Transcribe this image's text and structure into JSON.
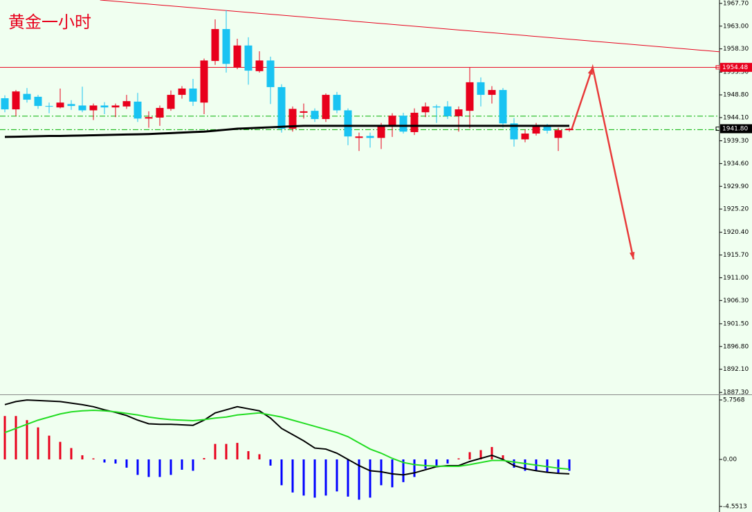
{
  "chart_data": [
    {
      "type": "candlestick",
      "title": "黄金一小时",
      "open": [
        1948.1,
        1945.8,
        1949.0,
        1948.4,
        1946.5,
        1946.2,
        1946.9,
        1946.6,
        1945.6,
        1946.6,
        1946.2,
        1946.4,
        1947.4,
        1943.9,
        1944.1,
        1945.9,
        1948.8,
        1950.1,
        1947.2,
        1955.8,
        1962.4,
        1954.5,
        1959.0,
        1953.7,
        1955.9,
        1950.4,
        1941.8,
        1945.1,
        1945.5,
        1943.8,
        1948.8,
        1945.6,
        1939.9,
        1940.3,
        1939.9,
        1942.4,
        1944.5,
        1941.1,
        1945.2,
        1946.4,
        1946.4,
        1944.4,
        1945.5,
        1951.4,
        1948.8,
        1949.8,
        1942.9,
        1939.6,
        1940.8,
        1942.4,
        1939.9,
        1941.5
      ],
      "high": [
        1948.7,
        1949.8,
        1950.2,
        1948.8,
        1947.2,
        1950.1,
        1947.7,
        1950.5,
        1947.0,
        1947.3,
        1947.0,
        1948.8,
        1949.2,
        1945.4,
        1946.6,
        1949.7,
        1950.6,
        1952.1,
        1956.3,
        1964.4,
        1966.3,
        1960.4,
        1960.7,
        1957.8,
        1956.7,
        1951.0,
        1946.4,
        1947.0,
        1946.0,
        1949.1,
        1949.4,
        1946.0,
        1941.0,
        1941.0,
        1943.0,
        1945.0,
        1945.1,
        1946.0,
        1947.2,
        1946.8,
        1947.5,
        1946.4,
        1954.5,
        1952.4,
        1950.6,
        1950.2,
        1944.0,
        1941.6,
        1943.0,
        1942.8,
        1942.0,
        1942.0
      ],
      "low": [
        1945.2,
        1944.4,
        1947.2,
        1945.9,
        1945.0,
        1946.0,
        1945.7,
        1945.2,
        1943.6,
        1944.8,
        1944.2,
        1945.9,
        1943.2,
        1942.0,
        1942.4,
        1945.5,
        1948.0,
        1946.5,
        1944.8,
        1955.0,
        1953.4,
        1954.1,
        1950.9,
        1953.4,
        1946.9,
        1941.0,
        1941.2,
        1943.9,
        1943.2,
        1943.2,
        1945.0,
        1938.4,
        1937.2,
        1937.9,
        1937.6,
        1940.1,
        1940.8,
        1940.5,
        1944.2,
        1943.0,
        1943.8,
        1941.2,
        1941.9,
        1946.4,
        1947.0,
        1942.0,
        1938.1,
        1939.0,
        1940.4,
        1940.8,
        1937.2,
        1941.2
      ],
      "close": [
        1945.8,
        1949.5,
        1947.8,
        1946.5,
        1946.4,
        1947.2,
        1946.5,
        1945.6,
        1946.6,
        1946.2,
        1946.6,
        1947.5,
        1943.9,
        1944.2,
        1946.1,
        1948.8,
        1950.1,
        1947.4,
        1955.9,
        1962.4,
        1955.2,
        1959.0,
        1953.8,
        1955.9,
        1950.4,
        1941.8,
        1945.9,
        1945.4,
        1943.8,
        1948.8,
        1945.6,
        1940.2,
        1940.2,
        1939.9,
        1942.4,
        1944.5,
        1941.2,
        1945.1,
        1946.4,
        1946.2,
        1944.4,
        1945.8,
        1951.4,
        1948.8,
        1949.8,
        1942.9,
        1939.6,
        1940.8,
        1942.4,
        1941.4,
        1941.5,
        1941.8
      ],
      "up_color": "#e8001c",
      "down_color": "#19c3f2",
      "ma": {
        "color": "#000000",
        "values": [
          1940.1,
          1940.15,
          1940.2,
          1940.25,
          1940.3,
          1940.3,
          1940.35,
          1940.4,
          1940.45,
          1940.5,
          1940.55,
          1940.6,
          1940.65,
          1940.7,
          1940.8,
          1940.9,
          1941.0,
          1941.1,
          1941.2,
          1941.4,
          1941.6,
          1941.8,
          1941.9,
          1942.0,
          1942.1,
          1942.2,
          1942.3,
          1942.4,
          1942.4,
          1942.4,
          1942.4,
          1942.4,
          1942.4,
          1942.4,
          1942.4,
          1942.4,
          1942.4,
          1942.4,
          1942.4,
          1942.4,
          1942.4,
          1942.4,
          1942.4,
          1942.4,
          1942.4,
          1942.4,
          1942.4,
          1942.4,
          1942.4,
          1942.4,
          1942.4,
          1942.4
        ]
      },
      "ylim": [
        1886.9,
        1968.4
      ],
      "yticks": [
        {
          "value": 1967.7,
          "label": "1967.70"
        },
        {
          "value": 1963.0,
          "label": "1963.00"
        },
        {
          "value": 1958.3,
          "label": "1958.30"
        },
        {
          "value": 1953.5,
          "label": "1953.50"
        },
        {
          "value": 1948.8,
          "label": "1948.80"
        },
        {
          "value": 1944.1,
          "label": "1944.10"
        },
        {
          "value": 1939.3,
          "label": "1939.30"
        },
        {
          "value": 1934.6,
          "label": "1934.60"
        },
        {
          "value": 1929.9,
          "label": "1929.90"
        },
        {
          "value": 1925.2,
          "label": "1925.20"
        },
        {
          "value": 1920.4,
          "label": "1920.40"
        },
        {
          "value": 1915.7,
          "label": "1915.70"
        },
        {
          "value": 1911.0,
          "label": "1911.00"
        },
        {
          "value": 1906.3,
          "label": "1906.30"
        },
        {
          "value": 1901.5,
          "label": "1901.50"
        },
        {
          "value": 1896.8,
          "label": "1896.80"
        },
        {
          "value": 1892.1,
          "label": "1892.10"
        },
        {
          "value": 1887.3,
          "label": "1887.30"
        }
      ],
      "hlines": [
        {
          "value": 1954.48,
          "color": "#e8001c",
          "dashed": false
        },
        {
          "value": 1944.4,
          "color": "#00b000",
          "dashed": true
        },
        {
          "value": 1941.6,
          "color": "#00b000",
          "dashed": true
        }
      ],
      "price_labels": [
        {
          "value": 1954.48,
          "color": "#e8001c"
        },
        {
          "value": 1941.8,
          "label": "1941.80",
          "color": "#000000"
        }
      ],
      "trendlines": [
        {
          "color": "#e8001c",
          "arrow": false,
          "x": [
            8.6,
            64.6
          ],
          "y": [
            1968.4,
            1957.7
          ]
        },
        {
          "color": "#e83a3a",
          "arrow": true,
          "x": [
            51.2,
            53.1,
            56.8
          ],
          "y": [
            1941.6,
            1954.5,
            1914.8
          ]
        }
      ]
    },
    {
      "type": "macd",
      "histogram": [
        4.2,
        4.2,
        3.8,
        3.1,
        2.3,
        1.7,
        1.1,
        0.4,
        0.1,
        -0.3,
        -0.4,
        -0.8,
        -1.5,
        -1.7,
        -1.7,
        -1.5,
        -1.0,
        -1.1,
        0.13,
        1.5,
        1.5,
        1.6,
        0.8,
        0.5,
        -0.6,
        -2.5,
        -3.2,
        -3.5,
        -3.7,
        -3.5,
        -3.1,
        -3.6,
        -3.9,
        -3.7,
        -2.5,
        -2.7,
        -2.2,
        -1.7,
        -0.9,
        -0.6,
        -0.4,
        0.1,
        0.7,
        0.9,
        1.2,
        0.4,
        -0.8,
        -1.1,
        -1.1,
        -1.2,
        -1.3,
        -1.1
      ],
      "positive_color": "#e8001c",
      "negative_color": "#0000ff",
      "lines": [
        {
          "color": "#000000",
          "values": [
            5.3,
            5.6,
            5.75,
            5.7,
            5.65,
            5.6,
            5.45,
            5.3,
            5.1,
            4.8,
            4.55,
            4.25,
            3.8,
            3.45,
            3.4,
            3.4,
            3.35,
            3.3,
            3.8,
            4.5,
            4.8,
            5.1,
            4.9,
            4.7,
            4.0,
            3.0,
            2.4,
            1.8,
            1.1,
            1.0,
            0.6,
            0.0,
            -0.6,
            -1.1,
            -1.2,
            -1.4,
            -1.5,
            -1.3,
            -1.0,
            -0.7,
            -0.6,
            -0.6,
            -0.2,
            0.1,
            0.4,
            0.0,
            -0.6,
            -0.9,
            -1.1,
            -1.25,
            -1.35,
            -1.4
          ]
        },
        {
          "color": "#22dd22",
          "values": [
            2.6,
            3.0,
            3.4,
            3.8,
            4.1,
            4.4,
            4.6,
            4.7,
            4.75,
            4.7,
            4.6,
            4.45,
            4.3,
            4.1,
            3.95,
            3.85,
            3.8,
            3.75,
            3.85,
            4.0,
            4.1,
            4.3,
            4.4,
            4.5,
            4.3,
            4.1,
            3.8,
            3.5,
            3.2,
            2.9,
            2.6,
            2.2,
            1.6,
            1.0,
            0.6,
            0.1,
            -0.3,
            -0.5,
            -0.6,
            -0.65,
            -0.67,
            -0.67,
            -0.5,
            -0.3,
            -0.1,
            -0.1,
            -0.25,
            -0.4,
            -0.55,
            -0.7,
            -0.85,
            -0.95
          ]
        }
      ],
      "ylim": [
        -5.09,
        6.16
      ],
      "yticks": [
        5.7568,
        {
          "value": 0,
          "label": "0.00"
        },
        -4.5513
      ]
    }
  ]
}
